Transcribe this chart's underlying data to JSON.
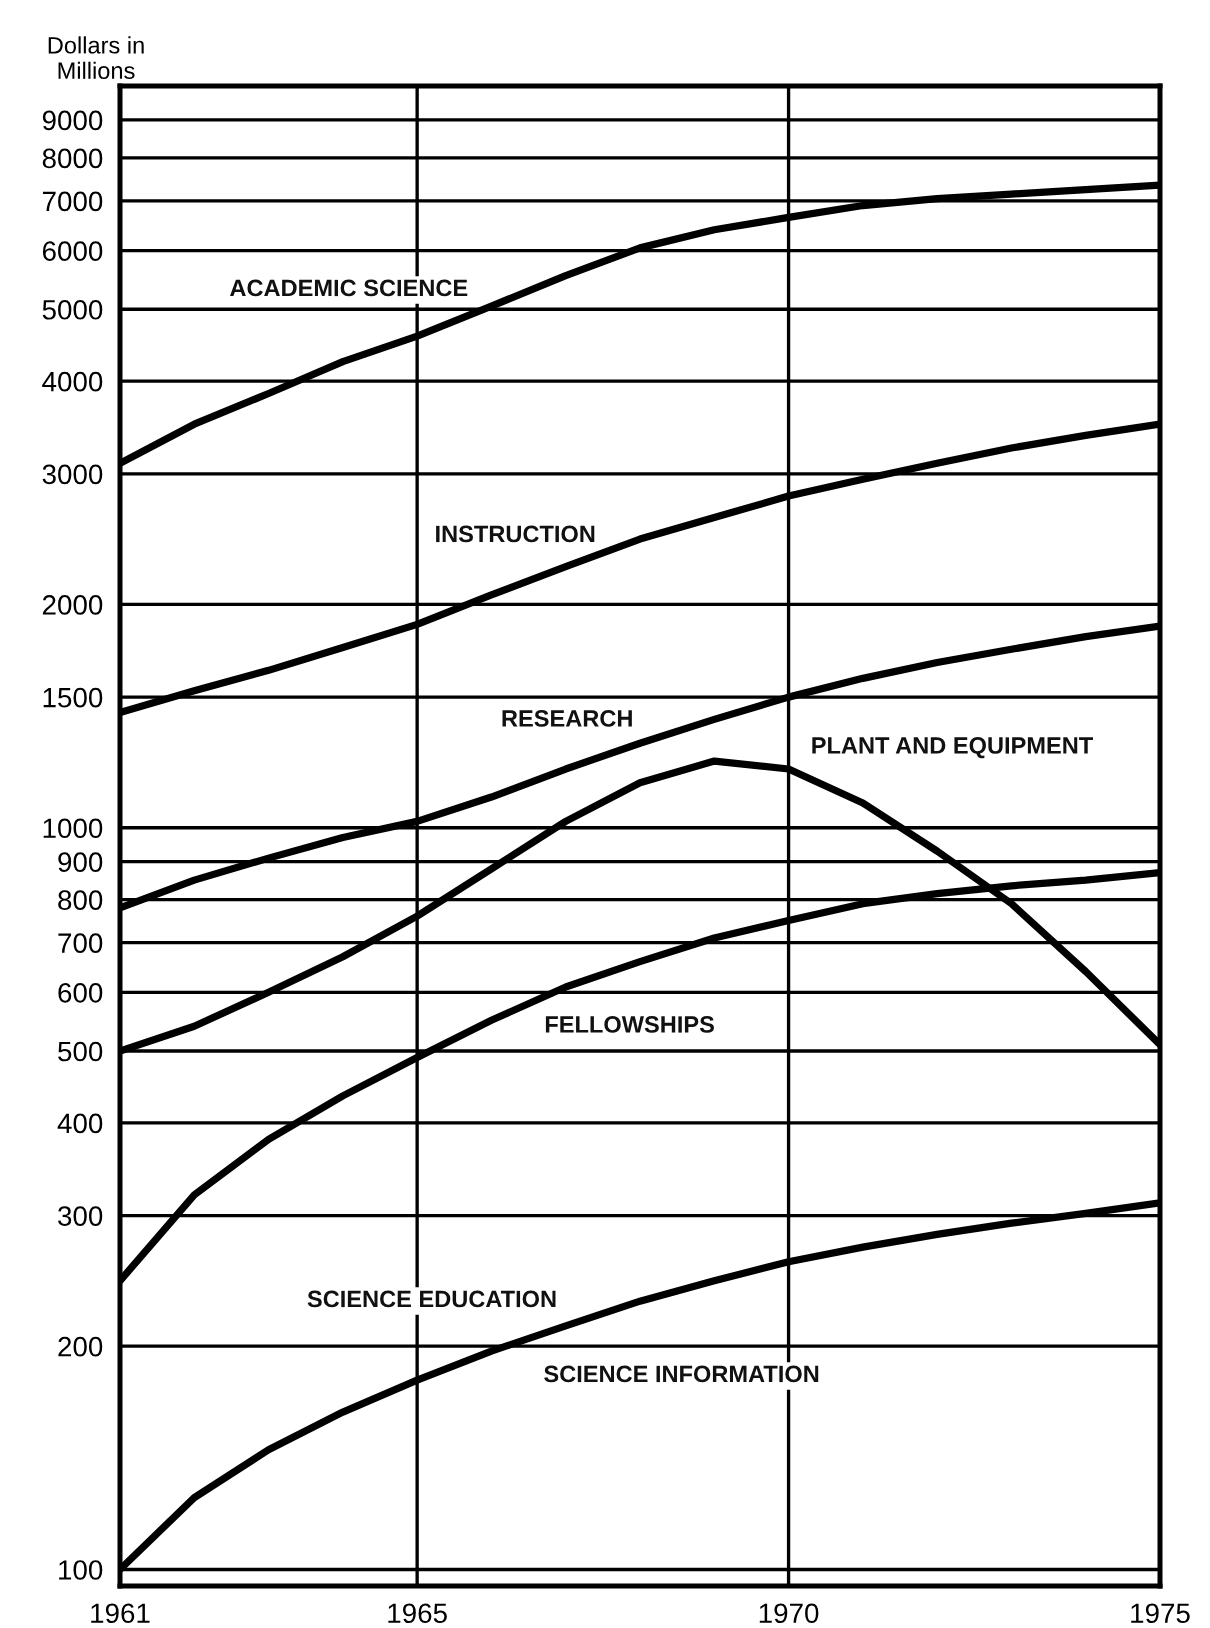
{
  "chart_data": {
    "type": "line",
    "ylabel": "Dollars in\nMillions",
    "log": true,
    "grid": true,
    "legend": false,
    "marker": "none",
    "line_style": "solid",
    "x": [
      1961,
      1962,
      1963,
      1964,
      1965,
      1966,
      1967,
      1968,
      1969,
      1970,
      1971,
      1972,
      1973,
      1974,
      1975
    ],
    "xlim": [
      1961,
      1975
    ],
    "xticks": [
      1961,
      1965,
      1970,
      1975
    ],
    "ylim": [
      95,
      10000
    ],
    "yticks": [
      100,
      200,
      300,
      400,
      500,
      600,
      700,
      800,
      900,
      1000,
      1500,
      2000,
      3000,
      4000,
      5000,
      6000,
      7000,
      8000,
      9000
    ],
    "series": [
      {
        "name": "ACADEMIC SCIENCE",
        "color": "#000000",
        "values": [
          3100,
          3500,
          3850,
          4250,
          4600,
          5050,
          5550,
          6050,
          6400,
          6650,
          6900,
          7050,
          7150,
          7250,
          7350
        ]
      },
      {
        "name": "INSTRUCTION",
        "color": "#000000",
        "values": [
          1430,
          1530,
          1630,
          1750,
          1880,
          2060,
          2250,
          2450,
          2620,
          2800,
          2950,
          3100,
          3250,
          3380,
          3500
        ]
      },
      {
        "name": "RESEARCH",
        "color": "#000000",
        "values": [
          780,
          850,
          910,
          970,
          1020,
          1100,
          1200,
          1300,
          1400,
          1500,
          1590,
          1670,
          1740,
          1810,
          1870
        ]
      },
      {
        "name": "PLANT AND EQUIPMENT",
        "color": "#000000",
        "values": [
          500,
          540,
          600,
          670,
          760,
          880,
          1020,
          1150,
          1230,
          1200,
          1080,
          930,
          790,
          640,
          510
        ]
      },
      {
        "name": "FELLOWSHIPS",
        "color": "#000000",
        "values": [
          245,
          320,
          380,
          435,
          490,
          550,
          610,
          660,
          710,
          750,
          790,
          815,
          835,
          850,
          870
        ]
      },
      {
        "color": "#000000",
        "values": [
          100,
          125,
          145,
          163,
          180,
          197,
          213,
          230,
          245,
          260,
          272,
          283,
          293,
          302,
          312
        ]
      }
    ],
    "annotations": [
      "SCIENCE EDUCATION",
      "SCIENCE INFORMATION"
    ]
  }
}
